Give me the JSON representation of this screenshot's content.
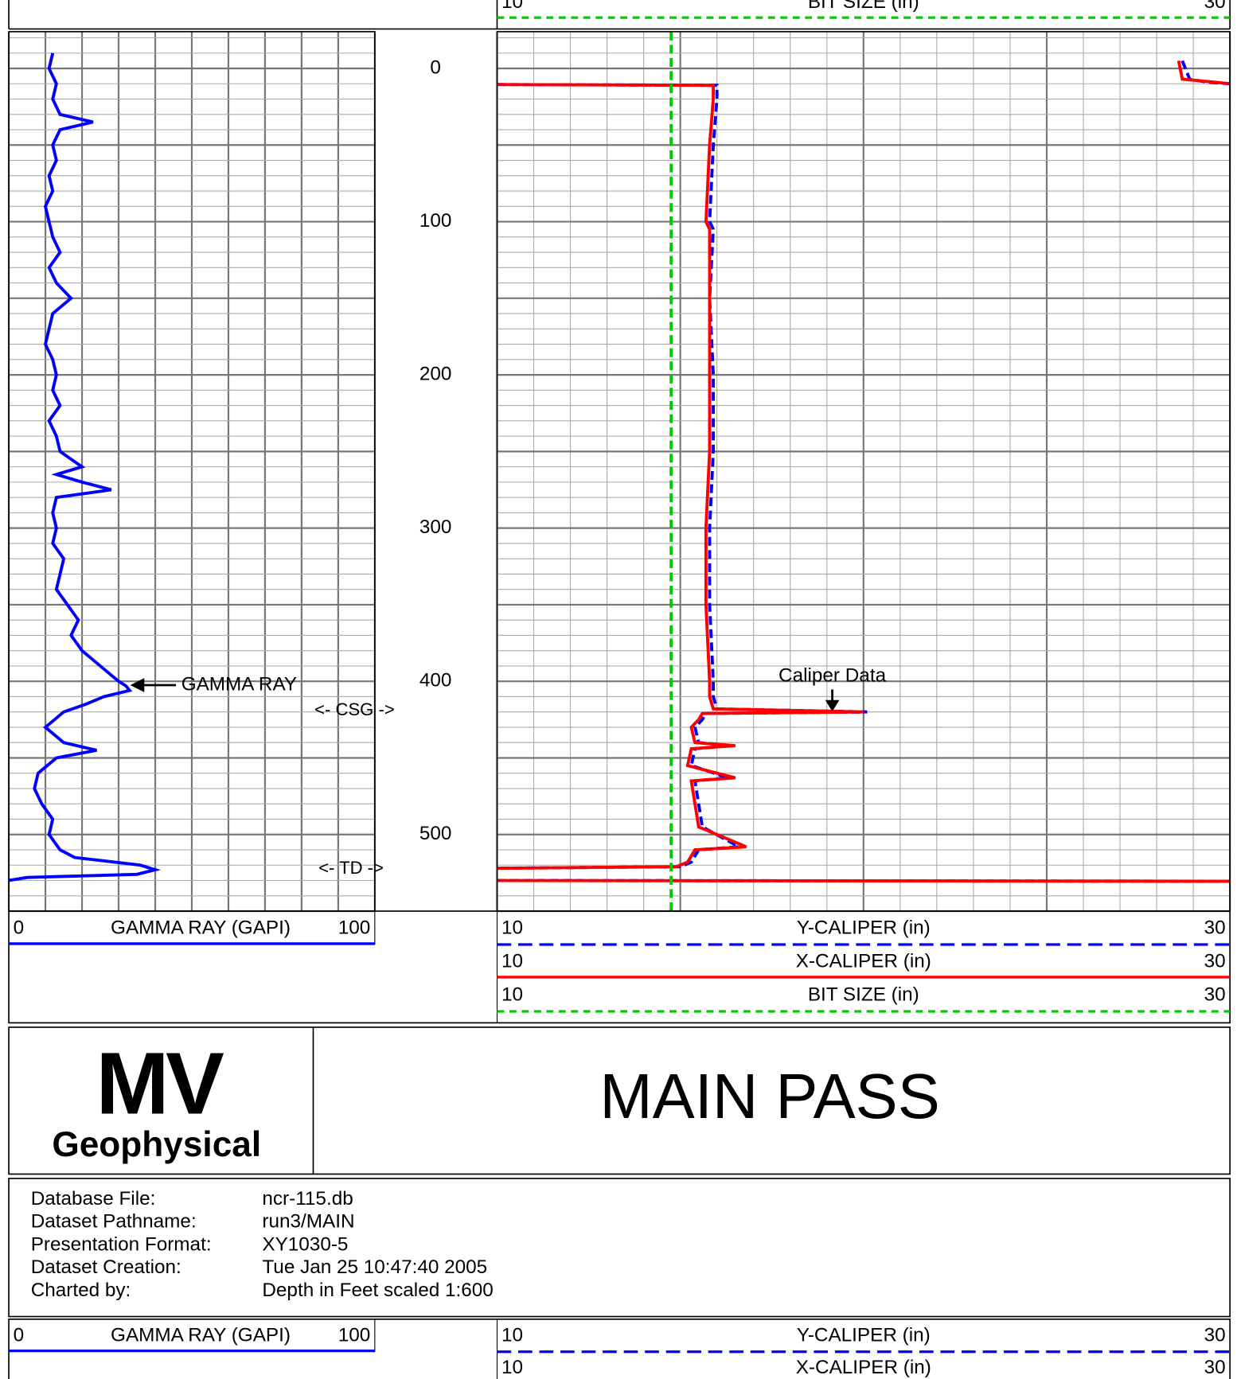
{
  "chart_data": [
    {
      "type": "line",
      "xlim": [
        0,
        100
      ],
      "xticks": [
        0,
        10,
        20,
        30,
        40,
        50,
        60,
        70,
        80,
        90,
        100
      ],
      "ylim": [
        -24,
        550
      ],
      "yticks": [
        0,
        100,
        200,
        300,
        400,
        500
      ],
      "ygrid": [
        -20,
        -10,
        0,
        10,
        20,
        30,
        40,
        50,
        60,
        70,
        80,
        90,
        100,
        110,
        120,
        130,
        140,
        150,
        160,
        170,
        180,
        190,
        200,
        210,
        220,
        230,
        240,
        250,
        260,
        270,
        280,
        290,
        300,
        310,
        320,
        330,
        340,
        350,
        360,
        370,
        380,
        390,
        400,
        410,
        420,
        430,
        440,
        450,
        460,
        470,
        480,
        490,
        500,
        510,
        520,
        530,
        540,
        550
      ],
      "series": [
        {
          "name": "GAMMA RAY (GAPI)",
          "color": "#0000ff",
          "depth": [
            -10,
            0,
            10,
            20,
            30,
            35,
            40,
            50,
            60,
            70,
            80,
            90,
            100,
            110,
            120,
            130,
            140,
            150,
            160,
            170,
            180,
            190,
            200,
            210,
            220,
            230,
            240,
            250,
            260,
            265,
            270,
            275,
            280,
            290,
            300,
            310,
            320,
            330,
            340,
            350,
            360,
            370,
            380,
            390,
            400,
            403,
            406,
            410,
            415,
            420,
            430,
            440,
            445,
            450,
            460,
            470,
            480,
            490,
            500,
            510,
            515,
            520,
            523,
            526,
            528,
            530
          ],
          "values": [
            12,
            11,
            13,
            12,
            14,
            23,
            14,
            12,
            13,
            11,
            12,
            10,
            11,
            12,
            14,
            11,
            13,
            17,
            12,
            11,
            10,
            12,
            13,
            12,
            14,
            11,
            13,
            14,
            20,
            13,
            20,
            28,
            13,
            12,
            13,
            12,
            15,
            14,
            13,
            16,
            19,
            17,
            20,
            25,
            30,
            32,
            33,
            26,
            21,
            15,
            10,
            15,
            24,
            13,
            8,
            7,
            9,
            12,
            11,
            14,
            18,
            36,
            40,
            35,
            5,
            0
          ]
        }
      ],
      "annotations": [
        "GAMMA RAY",
        "<- CSG ->",
        "<- TD ->"
      ]
    },
    {
      "type": "line",
      "xlim": [
        10,
        30
      ],
      "xticks": [
        10,
        11,
        12,
        13,
        14,
        15,
        16,
        17,
        18,
        19,
        20,
        21,
        22,
        23,
        24,
        25,
        26,
        27,
        28,
        29,
        30
      ],
      "ylim": [
        -24,
        550
      ],
      "ygrid": [
        -20,
        -10,
        0,
        10,
        20,
        30,
        40,
        50,
        60,
        70,
        80,
        90,
        100,
        110,
        120,
        130,
        140,
        150,
        160,
        170,
        180,
        190,
        200,
        210,
        220,
        230,
        240,
        250,
        260,
        270,
        280,
        290,
        300,
        310,
        320,
        330,
        340,
        350,
        360,
        370,
        380,
        390,
        400,
        410,
        420,
        430,
        440,
        450,
        460,
        470,
        480,
        490,
        500,
        510,
        520,
        530,
        540,
        550
      ],
      "series": [
        {
          "name": "Y-CALIPER (in)",
          "color": "#0000ff",
          "dash": true,
          "depth": [
            -5,
            7,
            9,
            10,
            10,
            10.5,
            11,
            20,
            50,
            100,
            105,
            150,
            200,
            250,
            300,
            350,
            400,
            410,
            418,
            420,
            421,
            425,
            430,
            440,
            442,
            444,
            455,
            463,
            465,
            480,
            495,
            508,
            510,
            518,
            521,
            522,
            524,
            530,
            530.5,
            531
          ],
          "values": [
            28.7,
            28.9,
            29.4,
            30,
            null,
            10,
            16.0,
            16.0,
            15.9,
            15.8,
            15.9,
            15.8,
            15.9,
            15.9,
            15.8,
            15.8,
            15.9,
            15.9,
            16.0,
            20.1,
            15.7,
            15.6,
            15.4,
            15.5,
            16.4,
            15.4,
            15.3,
            16.3,
            15.4,
            15.5,
            15.6,
            16.6,
            15.5,
            15.3,
            15.0,
            10,
            null,
            10,
            30,
            30
          ]
        },
        {
          "name": "X-CALIPER (in)",
          "color": "#ff0000",
          "dash": false,
          "depth": [
            -5,
            7,
            9,
            10,
            10,
            10.5,
            11,
            20,
            50,
            100,
            105,
            150,
            200,
            250,
            300,
            350,
            400,
            410,
            418,
            420,
            421,
            425,
            430,
            440,
            442,
            444,
            455,
            463,
            465,
            480,
            495,
            508,
            510,
            518,
            521,
            522,
            524,
            530,
            530.5,
            531
          ],
          "values": [
            28.6,
            28.7,
            29.6,
            30,
            null,
            10,
            15.9,
            15.9,
            15.8,
            15.7,
            15.8,
            15.8,
            15.8,
            15.8,
            15.7,
            15.7,
            15.8,
            15.8,
            15.9,
            20.0,
            15.6,
            15.5,
            15.3,
            15.4,
            16.5,
            15.3,
            15.2,
            16.5,
            15.3,
            15.4,
            15.5,
            16.8,
            15.4,
            15.2,
            14.9,
            10,
            null,
            10,
            30,
            30
          ]
        },
        {
          "name": "BIT SIZE (in)",
          "color": "#00cc00",
          "dash": true,
          "depth": [
            -24,
            550
          ],
          "values": [
            14.75,
            14.75
          ]
        }
      ],
      "annotations": [
        "Caliper Data"
      ]
    }
  ],
  "logo": {
    "line1": "MV",
    "line2": "Geophysical"
  },
  "title": "MAIN PASS",
  "info": [
    {
      "label": "Database File:",
      "value": "ncr-115.db"
    },
    {
      "label": "Dataset Pathname:",
      "value": "run3/MAIN"
    },
    {
      "label": "Presentation Format:",
      "value": "XY1030-5"
    },
    {
      "label": "Dataset Creation:",
      "value": "Tue Jan 25 10:47:40 2005"
    },
    {
      "label": "Charted by:",
      "value": "Depth in Feet scaled 1:600"
    }
  ]
}
